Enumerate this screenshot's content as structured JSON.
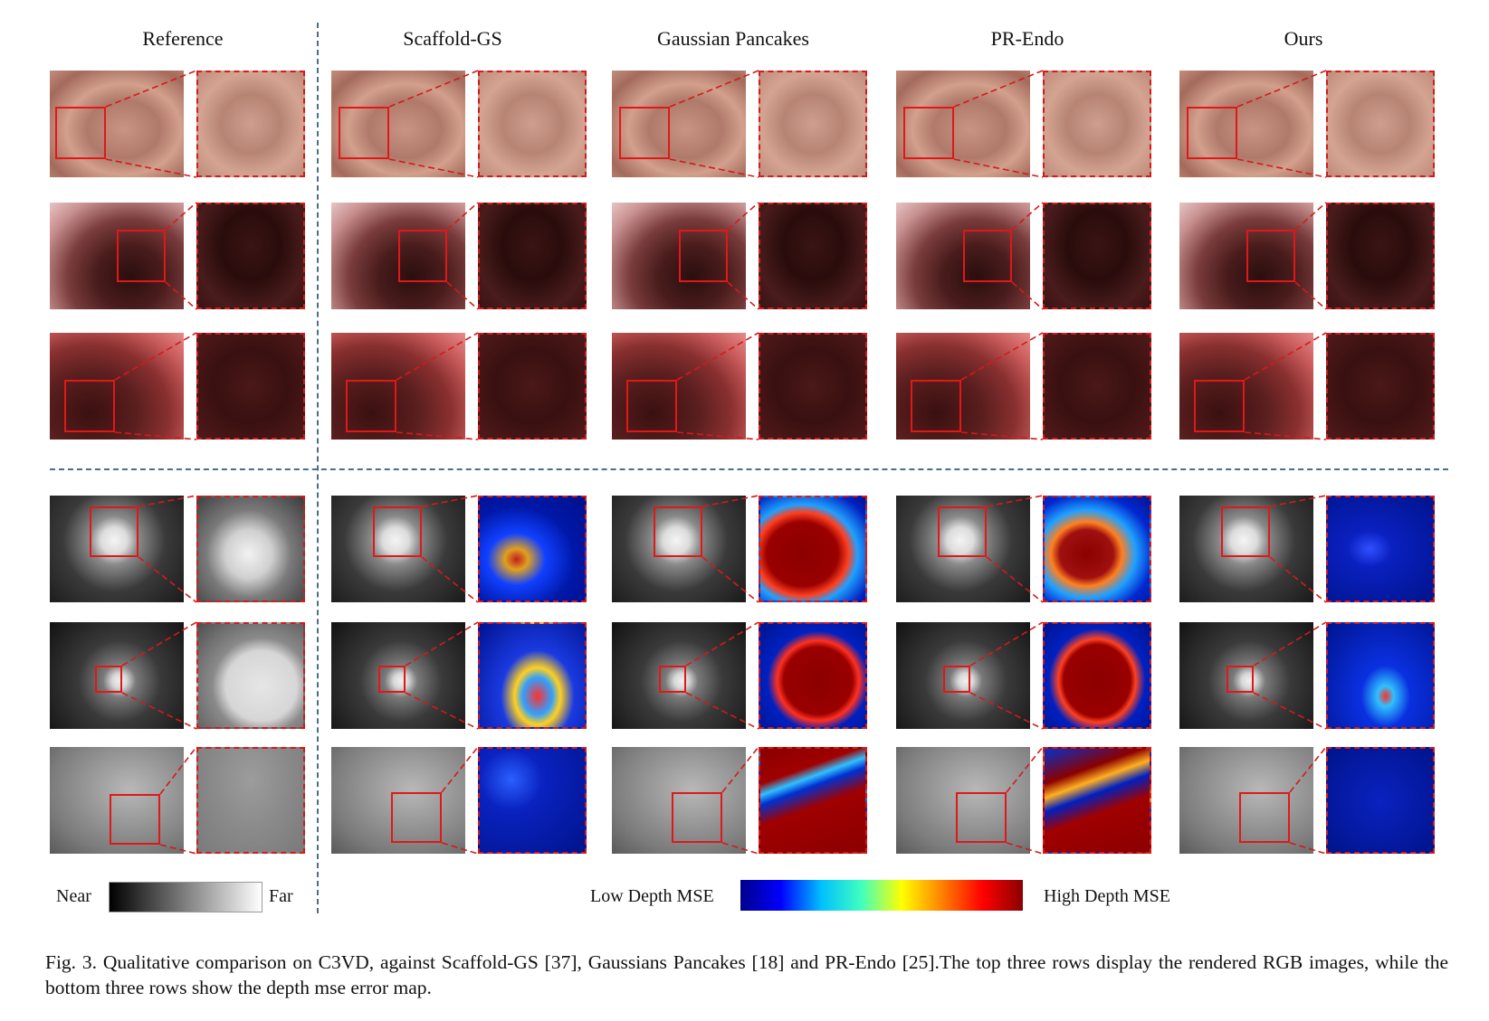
{
  "headers": [
    "Reference",
    "Scaffold-GS",
    "Gaussian Pancakes",
    "PR-Endo",
    "Ours"
  ],
  "legend": {
    "near": "Near",
    "far": "Far",
    "low": "Low Depth MSE",
    "high": "High Depth MSE"
  },
  "caption": "Fig. 3.  Qualitative comparison on C3VD, against Scaffold-GS [37], Gaussians Pancakes [18] and PR-Endo [25].The top three rows display the rendered RGB images, while the bottom three rows show the depth mse error map.",
  "colors": {
    "accent": "#e01818",
    "divider": "#4a6e8c"
  }
}
